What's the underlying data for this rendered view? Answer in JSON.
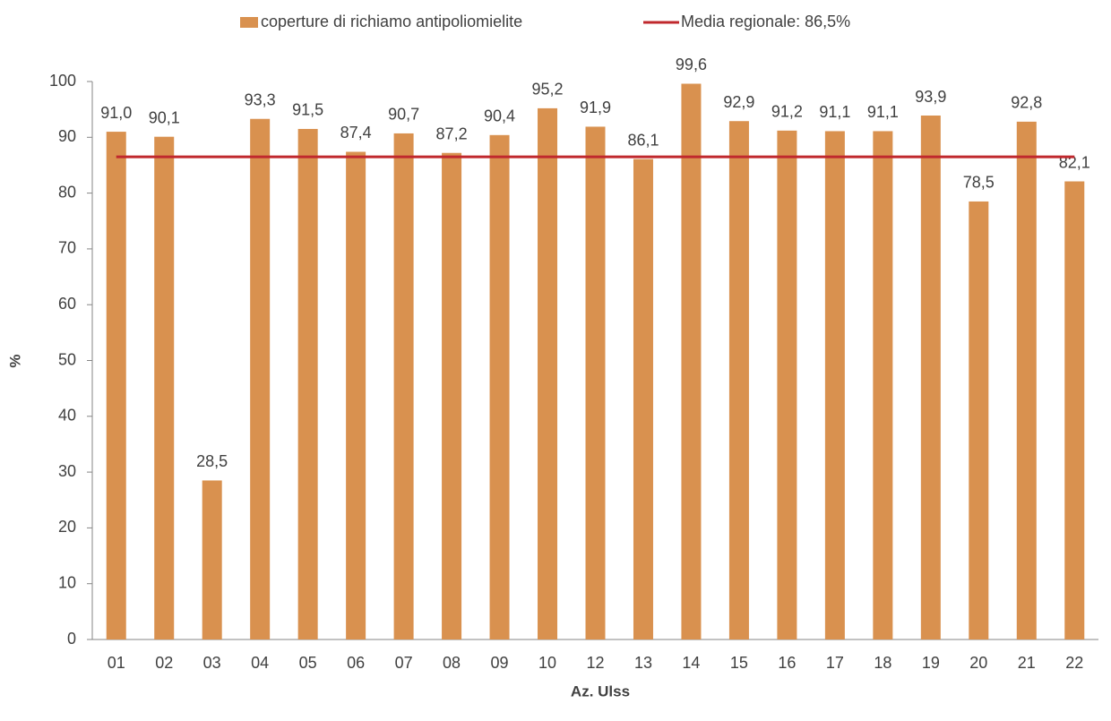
{
  "chart_data": {
    "type": "bar",
    "xlabel": "Az. Ulss",
    "ylabel": "%",
    "categories": [
      "01",
      "02",
      "03",
      "04",
      "05",
      "06",
      "07",
      "08",
      "09",
      "10",
      "12",
      "13",
      "14",
      "15",
      "16",
      "17",
      "18",
      "19",
      "20",
      "21",
      "22"
    ],
    "series": [
      {
        "name": "coperture di richiamo antipoliomielite",
        "color": "#d9914f",
        "values": [
          91.0,
          90.1,
          28.5,
          93.3,
          91.5,
          87.4,
          90.7,
          87.2,
          90.4,
          95.2,
          91.9,
          86.1,
          99.6,
          92.9,
          91.2,
          91.1,
          91.1,
          93.9,
          78.5,
          92.8,
          82.1
        ],
        "value_labels": [
          "91,0",
          "90,1",
          "28,5",
          "93,3",
          "91,5",
          "87,4",
          "90,7",
          "87,2",
          "90,4",
          "95,2",
          "91,9",
          "86,1",
          "99,6",
          "92,9",
          "91,2",
          "91,1",
          "91,1",
          "93,9",
          "78,5",
          "92,8",
          "82,1"
        ]
      },
      {
        "name": "Media regionale: 86,5%",
        "color": "#c0282d",
        "type": "line",
        "values": [
          86.5,
          86.5,
          86.5,
          86.5,
          86.5,
          86.5,
          86.5,
          86.5,
          86.5,
          86.5,
          86.5,
          86.5,
          86.5,
          86.5,
          86.5,
          86.5,
          86.5,
          86.5,
          86.5,
          86.5,
          86.5
        ]
      }
    ],
    "ylim": [
      0,
      100
    ],
    "yticks": [
      0,
      10,
      20,
      30,
      40,
      50,
      60,
      70,
      80,
      90,
      100
    ],
    "legend": "top"
  }
}
